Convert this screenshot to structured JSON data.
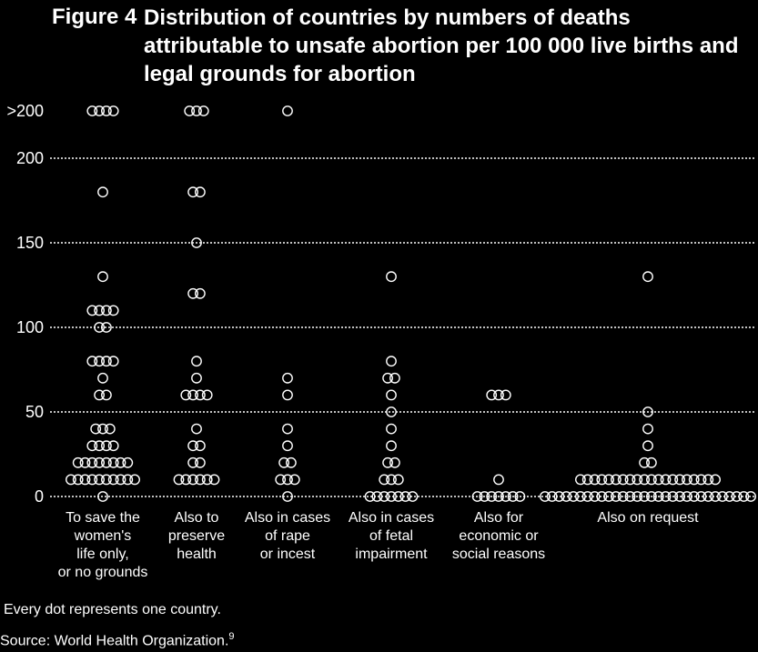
{
  "figure_label": "Figure 4",
  "title": "Distribution of countries by numbers of deaths attributable to unsafe abortion per 100 000 live births and legal grounds for abortion",
  "footnote": "Every dot represents one country.",
  "source": "Source: World Health Organization.",
  "source_ref": "9",
  "chart_data": {
    "type": "scatter",
    "title": "Distribution of countries by numbers of deaths attributable to unsafe abortion per 100 000 live births and legal grounds for abortion",
    "xlabel": "",
    "ylabel": "",
    "ylim": [
      0,
      230
    ],
    "ytick_labels": [
      ">200",
      "200",
      "150",
      "100",
      "50",
      "0"
    ],
    "yticks": [
      230,
      200,
      150,
      100,
      50,
      0
    ],
    "grid": true,
    "categories": [
      "To save the women's life only, or no grounds",
      "Also to preserve health",
      "Also in cases of rape or incest",
      "Also in cases of fetal impairment",
      "Also for economic or social reasons",
      "Also on request"
    ],
    "category_lines": [
      [
        "To save the",
        "women's",
        "life only,",
        "or no grounds"
      ],
      [
        "Also to",
        "preserve",
        "health"
      ],
      [
        "Also in cases",
        "of rape",
        "or incest"
      ],
      [
        "Also in cases",
        "of fetal",
        "impairment"
      ],
      [
        "Also for",
        "economic or",
        "social reasons"
      ],
      [
        "Also on request"
      ]
    ],
    "dots": [
      {
        "category": 0,
        "groups": [
          [
            230,
            4
          ],
          [
            180,
            1
          ],
          [
            130,
            1
          ],
          [
            110,
            4
          ],
          [
            100,
            2
          ],
          [
            80,
            4
          ],
          [
            70,
            1
          ],
          [
            60,
            2
          ],
          [
            40,
            3
          ],
          [
            30,
            4
          ],
          [
            20,
            8
          ],
          [
            10,
            10
          ],
          [
            0,
            1
          ]
        ]
      },
      {
        "category": 1,
        "groups": [
          [
            230,
            3
          ],
          [
            180,
            2
          ],
          [
            150,
            1
          ],
          [
            120,
            2
          ],
          [
            80,
            1
          ],
          [
            70,
            1
          ],
          [
            60,
            4
          ],
          [
            40,
            1
          ],
          [
            30,
            2
          ],
          [
            20,
            2
          ],
          [
            10,
            6
          ]
        ]
      },
      {
        "category": 2,
        "groups": [
          [
            230,
            1
          ],
          [
            70,
            1
          ],
          [
            60,
            1
          ],
          [
            40,
            1
          ],
          [
            30,
            1
          ],
          [
            20,
            2
          ],
          [
            10,
            3
          ],
          [
            0,
            1
          ]
        ]
      },
      {
        "category": 3,
        "groups": [
          [
            130,
            1
          ],
          [
            80,
            1
          ],
          [
            70,
            2
          ],
          [
            60,
            1
          ],
          [
            50,
            1
          ],
          [
            40,
            1
          ],
          [
            30,
            1
          ],
          [
            20,
            2
          ],
          [
            10,
            3
          ],
          [
            0,
            7
          ]
        ]
      },
      {
        "category": 4,
        "groups": [
          [
            60,
            3
          ],
          [
            10,
            1
          ],
          [
            0,
            7
          ]
        ]
      },
      {
        "category": 5,
        "groups": [
          [
            130,
            1
          ],
          [
            50,
            1
          ],
          [
            40,
            1
          ],
          [
            30,
            1
          ],
          [
            20,
            2
          ],
          [
            10,
            20
          ],
          [
            0,
            30
          ]
        ]
      }
    ]
  }
}
